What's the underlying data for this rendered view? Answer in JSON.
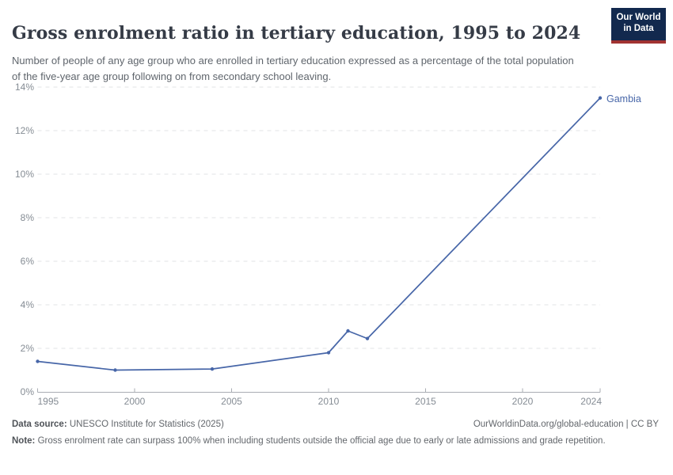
{
  "header": {
    "title": "Gross enrolment ratio in tertiary education, 1995 to 2024",
    "subtitle": "Number of people of any age group who are enrolled in tertiary education expressed as a percentage of the total population of the five-year age group following on from secondary school leaving.",
    "logo": {
      "line1": "Our World",
      "line2": "in Data",
      "bg_color": "#12294e",
      "accent_color": "#a13331"
    }
  },
  "chart_data": {
    "type": "line",
    "title": "Gross enrolment ratio in tertiary education, 1995 to 2024",
    "xlabel": "",
    "ylabel": "",
    "x": [
      1995,
      1999,
      2004,
      2010,
      2011,
      2012,
      2024
    ],
    "series": [
      {
        "name": "Gambia",
        "color": "#4766a8",
        "values": [
          1.4,
          1.0,
          1.05,
          1.8,
          2.8,
          2.45,
          13.5
        ]
      }
    ],
    "xlim": [
      1995,
      2024
    ],
    "ylim": [
      0,
      14
    ],
    "x_ticks": [
      1995,
      2000,
      2005,
      2010,
      2015,
      2020,
      2024
    ],
    "x_tick_labels": [
      "1995",
      "2000",
      "2005",
      "2010",
      "2015",
      "2020",
      "2024"
    ],
    "y_ticks": [
      0,
      2,
      4,
      6,
      8,
      10,
      12,
      14
    ],
    "y_tick_labels": [
      "0%",
      "2%",
      "4%",
      "6%",
      "8%",
      "10%",
      "12%",
      "14%"
    ],
    "grid": "horizontal-dashed",
    "legend_position": "end-of-line-label",
    "colors": {
      "grid": "#e1e3e6",
      "axis": "#a9adb3",
      "tick_text": "#858c94"
    }
  },
  "footer": {
    "datasource_label": "Data source:",
    "datasource_text": "UNESCO Institute for Statistics (2025)",
    "url": "OurWorldinData.org/global-education | CC BY",
    "note_label": "Note:",
    "note_text": "Gross enrolment rate can surpass 100% when including students outside the official age due to early or late admissions and grade repetition."
  }
}
